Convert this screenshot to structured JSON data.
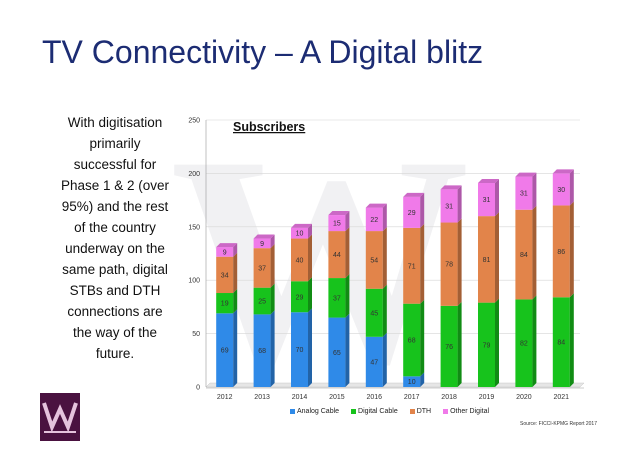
{
  "title": "TV Connectivity – A Digital blitz",
  "description": "With digitisation primarily successful for Phase 1 & 2 (over 95%) and the rest of the country underway on the same path, digital STBs and DTH connections are the way of the future.",
  "source": "Source: FICCI-KPMG Report 2017",
  "colors": {
    "title": "#1c2c73",
    "analog": "#2f8ae8",
    "digital": "#17c31c",
    "dth": "#e2844a",
    "other": "#f07ae9"
  },
  "chart_data": {
    "type": "bar",
    "stacked": true,
    "title": "Subscribers",
    "categories": [
      "2012",
      "2013",
      "2014",
      "2015",
      "2016",
      "2017",
      "2018",
      "2019",
      "2020",
      "2021"
    ],
    "ylim": [
      0,
      250
    ],
    "yticks": [
      0,
      50,
      100,
      150,
      200,
      250
    ],
    "series": [
      {
        "name": "Analog Cable",
        "color": "#2f8ae8",
        "values": [
          69,
          68,
          70,
          65,
          47,
          10,
          0,
          0,
          0,
          0
        ],
        "labels": [
          "69",
          "68",
          "70",
          "65",
          "47",
          "10",
          "",
          "",
          "",
          ""
        ]
      },
      {
        "name": "Digital Cable",
        "color": "#17c31c",
        "values": [
          19,
          25,
          29,
          37,
          45,
          68,
          76,
          79,
          82,
          84
        ],
        "labels": [
          "19",
          "25",
          "29",
          "37",
          "45",
          "68",
          "76",
          "79",
          "82",
          "84"
        ]
      },
      {
        "name": "DTH",
        "color": "#e2844a",
        "values": [
          34,
          37,
          40,
          44,
          54,
          71,
          78,
          81,
          84,
          86
        ],
        "labels": [
          "34",
          "37",
          "40",
          "44",
          "54",
          "71",
          "78",
          "81",
          "84",
          "86"
        ]
      },
      {
        "name": "Other Digital",
        "color": "#f07ae9",
        "values": [
          9,
          9,
          10,
          15,
          22,
          29,
          31,
          31,
          31,
          30
        ],
        "labels": [
          "9",
          "9",
          "10",
          "15",
          "22",
          "29",
          "31",
          "31",
          "31",
          "30"
        ]
      }
    ],
    "legend_position": "bottom"
  }
}
